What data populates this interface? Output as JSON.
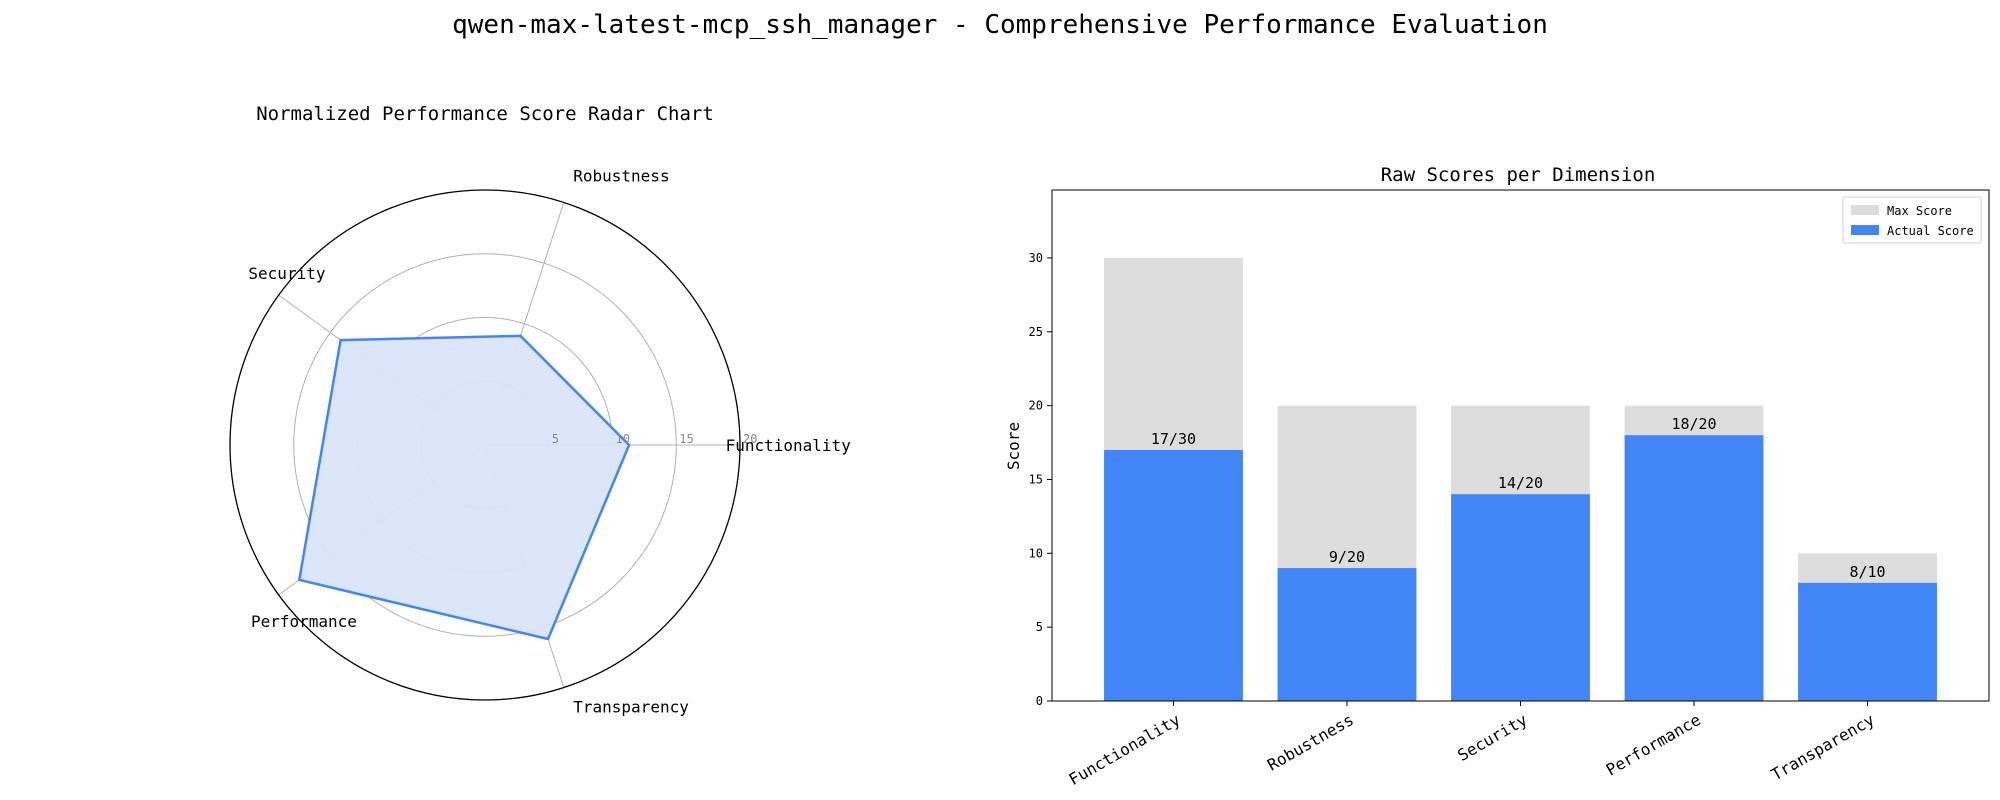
{
  "figure_title": "qwen-max-latest-mcp_ssh_manager - Comprehensive Performance Evaluation",
  "colors": {
    "actual": "#4285f4",
    "max": "#dddddd",
    "radar_line": "#4285f4",
    "radar_fill": "#dae5fb",
    "grid": "#b0b0b0"
  },
  "chart_data": [
    {
      "type": "radar",
      "title": "Normalized Performance Score Radar Chart",
      "axes": [
        "Functionality",
        "Robustness",
        "Security",
        "Performance",
        "Transparency"
      ],
      "values": [
        11.3,
        9.0,
        14.0,
        18.0,
        16.0
      ],
      "rlim": [
        0,
        20
      ],
      "ring_ticks": [
        "5",
        "10",
        "15",
        "20"
      ],
      "grid": true
    },
    {
      "type": "bar",
      "title": "Raw Scores per Dimension",
      "ylabel": "Score",
      "categories": [
        "Functionality",
        "Robustness",
        "Security",
        "Performance",
        "Transparency"
      ],
      "series": [
        {
          "name": "Max Score",
          "values": [
            30,
            20,
            20,
            20,
            10
          ]
        },
        {
          "name": "Actual Score",
          "values": [
            17,
            9,
            14,
            18,
            8
          ]
        }
      ],
      "bar_labels": [
        "17/30",
        "9/20",
        "14/20",
        "18/20",
        "8/10"
      ],
      "ylim": [
        0,
        34.6
      ],
      "yticks": [
        "0",
        "5",
        "10",
        "15",
        "20",
        "25",
        "30"
      ],
      "legend_position": "top-right",
      "grid": false
    }
  ]
}
